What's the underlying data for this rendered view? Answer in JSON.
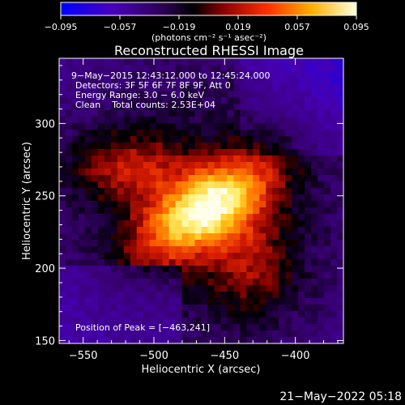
{
  "chart_data": {
    "type": "heatmap",
    "title": "Reconstructed RHESSI Image",
    "xlabel": "Heliocentric X (arcsec)",
    "ylabel": "Heliocentric Y (arcsec)",
    "xlim": [
      -567,
      -366
    ],
    "ylim": [
      148,
      345
    ],
    "xticks": [
      -550,
      -500,
      -450,
      -400
    ],
    "xtick_labels": [
      "−550",
      "−500",
      "−450",
      "−400"
    ],
    "yticks": [
      150,
      200,
      250,
      300
    ],
    "ytick_labels": [
      "150",
      "200",
      "250",
      "300"
    ],
    "colorbar": {
      "min": -0.095,
      "max": 0.095,
      "ticks": [
        -0.095,
        -0.057,
        -0.019,
        0.019,
        0.057,
        0.095
      ],
      "tick_labels": [
        "−0.095",
        "−0.057",
        "−0.019",
        "0.019",
        "0.057",
        "0.095"
      ],
      "unit_label": "(photons cm⁻² s⁻¹ asec⁻²)",
      "colormap": [
        "#0000ff",
        "#5000a0",
        "#300060",
        "#000000",
        "#a00000",
        "#ff4000",
        "#ffa000",
        "#ffff80",
        "#ffffff"
      ]
    },
    "annotations": [
      "9−May−2015 12:43:12.000 to 12:45:24.000",
      "Detectors: 3F 5F 6F 7F 8F 9F, Att 0",
      "Energy Range: 3.0 − 6.0 keV",
      "Clean    Total counts: 2.53E+04"
    ],
    "peak_label": "Position of Peak = [−463,241]",
    "peak": [
      -463,
      241
    ]
  },
  "footer_timestamp": "21−May−2022 05:18"
}
